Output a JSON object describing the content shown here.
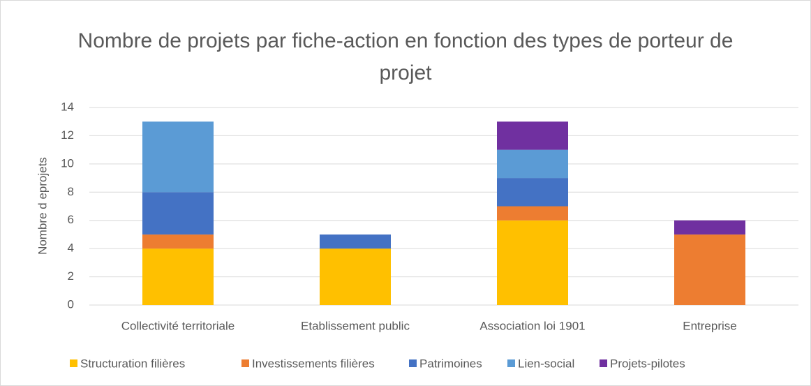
{
  "chart_data": {
    "type": "stacked_bar",
    "title": "Nombre de projets par fiche-action en fonction des types de porteur de projet",
    "y_label": "Nombre d eprojets",
    "categories": [
      "Collectivité territoriale",
      "Etablissement public",
      "Association loi 1901",
      "Entreprise"
    ],
    "series": [
      {
        "name": "Structuration filières",
        "color": "#FFC000",
        "values": [
          4,
          4,
          6,
          0
        ]
      },
      {
        "name": "Investissements filières",
        "color": "#ED7D31",
        "values": [
          1,
          0,
          1,
          5
        ]
      },
      {
        "name": "Patrimoines",
        "color": "#4472C4",
        "values": [
          3,
          1,
          2,
          0
        ]
      },
      {
        "name": "Lien-social",
        "color": "#5B9BD5",
        "values": [
          5,
          0,
          2,
          0
        ]
      },
      {
        "name": "Projets-pilotes",
        "color": "#7030A0",
        "values": [
          0,
          0,
          2,
          1
        ]
      }
    ],
    "ylim": [
      0,
      14
    ],
    "yticks": [
      0,
      2,
      4,
      6,
      8,
      10,
      12,
      14
    ],
    "grid": true,
    "legend": "bottom"
  }
}
